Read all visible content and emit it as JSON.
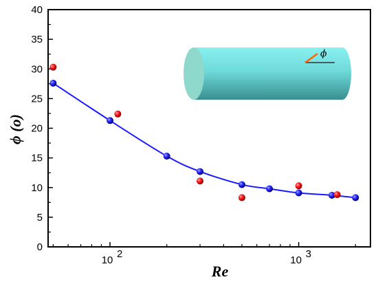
{
  "chart_data": {
    "type": "scatter",
    "xlabel": "Re",
    "ylabel": "ϕ (o)",
    "xscale": "log",
    "xlim": [
      47,
      2400
    ],
    "ylim": [
      0,
      40
    ],
    "x_ticks": [
      {
        "value": 100,
        "base": "10",
        "exp": "2"
      },
      {
        "value": 1000,
        "base": "10",
        "exp": "3"
      }
    ],
    "y_ticks": [
      0,
      5,
      10,
      15,
      20,
      25,
      30,
      35,
      40
    ],
    "grid": false,
    "series": [
      {
        "marker": "blue-sphere",
        "line": "smooth",
        "color": "#1a1aff",
        "x": [
          50,
          100,
          200,
          300,
          500,
          700,
          1000,
          1500,
          2000
        ],
        "y": [
          27.6,
          21.3,
          15.3,
          12.7,
          10.5,
          9.8,
          9.1,
          8.7,
          8.3
        ]
      },
      {
        "marker": "red-sphere",
        "line": "none",
        "color": "#ff0000",
        "x": [
          50,
          110,
          300,
          500,
          1000,
          1600
        ],
        "y": [
          30.3,
          22.4,
          11.1,
          8.3,
          10.3,
          8.8
        ]
      }
    ],
    "inset": {
      "type": "cylinder-diagram",
      "angle_label": "ϕ",
      "body_color": "#7fe5e5",
      "end_color": "#8fd8cc",
      "shade_color": "#4a9a9a",
      "arrow_color": "#ff6600"
    }
  }
}
